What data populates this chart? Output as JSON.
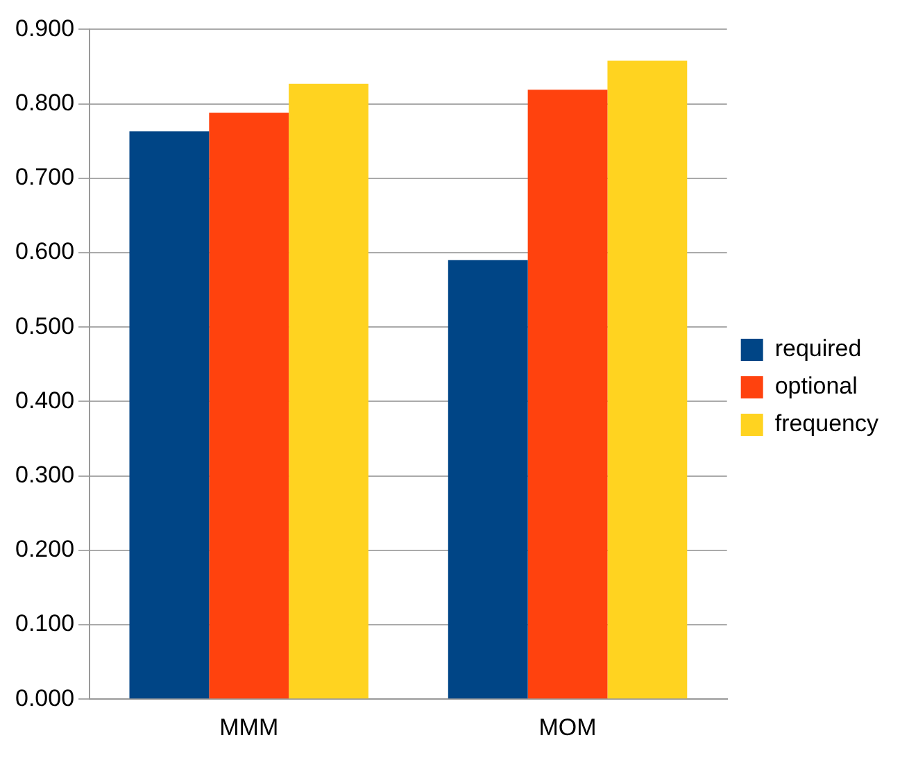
{
  "chart_data": {
    "type": "bar",
    "categories": [
      "MMM",
      "MOM"
    ],
    "series": [
      {
        "name": "required",
        "color": "#004586",
        "values": [
          0.763,
          0.59
        ]
      },
      {
        "name": "optional",
        "color": "#ff420e",
        "values": [
          0.788,
          0.819
        ]
      },
      {
        "name": "frequency",
        "color": "#ffd320",
        "values": [
          0.827,
          0.858
        ]
      }
    ],
    "ylim": [
      0,
      0.9
    ],
    "yticks": [
      {
        "value": 0,
        "label": "0.000"
      },
      {
        "value": 0.1,
        "label": "0.100"
      },
      {
        "value": 0.2,
        "label": "0.200"
      },
      {
        "value": 0.3,
        "label": "0.300"
      },
      {
        "value": 0.4,
        "label": "0.400"
      },
      {
        "value": 0.5,
        "label": "0.500"
      },
      {
        "value": 0.6,
        "label": "0.600"
      },
      {
        "value": 0.7,
        "label": "0.700"
      },
      {
        "value": 0.8,
        "label": "0.800"
      },
      {
        "value": 0.9,
        "label": "0.900"
      }
    ],
    "grid": "y",
    "legend": "right"
  }
}
